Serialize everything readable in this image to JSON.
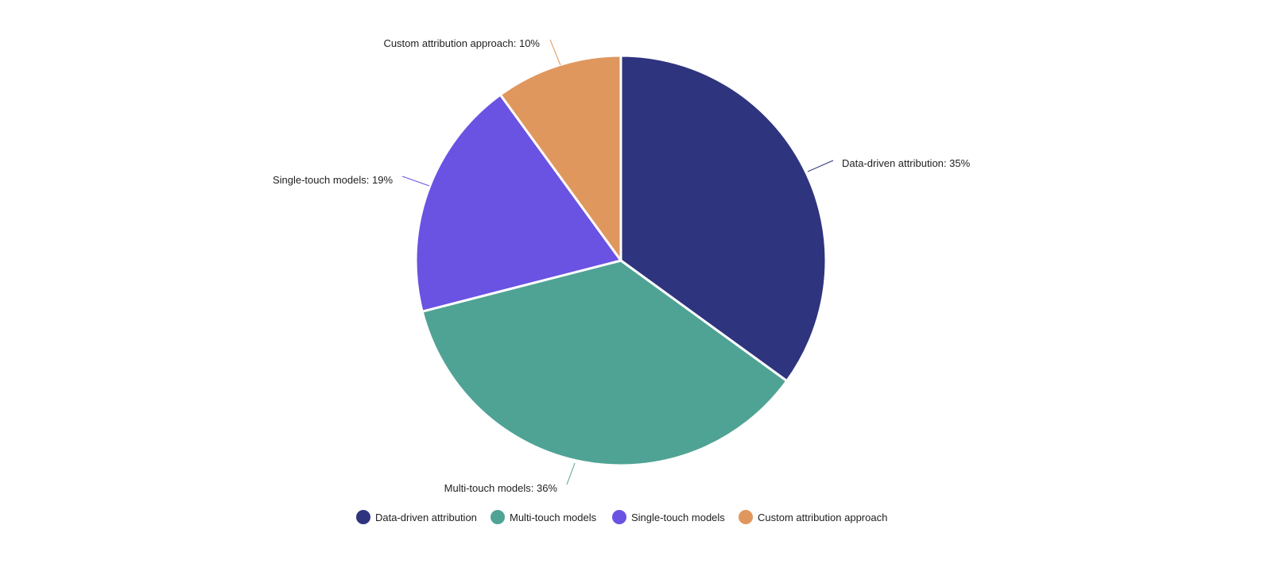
{
  "chart_data": {
    "type": "pie",
    "title": "",
    "series": [
      {
        "categories": [
          "Data-driven attribution",
          "Multi-touch models",
          "Single-touch models",
          "Custom attribution approach"
        ],
        "values": [
          35,
          36,
          19,
          10
        ]
      }
    ],
    "slice_labels": [
      "Data-driven attribution: 35%",
      "Multi-touch models: 36%",
      "Single-touch models: 19%",
      "Custom attribution approach: 10%"
    ],
    "legend": {
      "position": "bottom",
      "items": [
        "Data-driven attribution",
        "Multi-touch models",
        "Single-touch models",
        "Custom attribution approach"
      ]
    },
    "colors": [
      "#2e347d",
      "#4fa394",
      "#6a52e3",
      "#e0975e"
    ],
    "start_angle": "12 o'clock",
    "direction": "clockwise"
  }
}
